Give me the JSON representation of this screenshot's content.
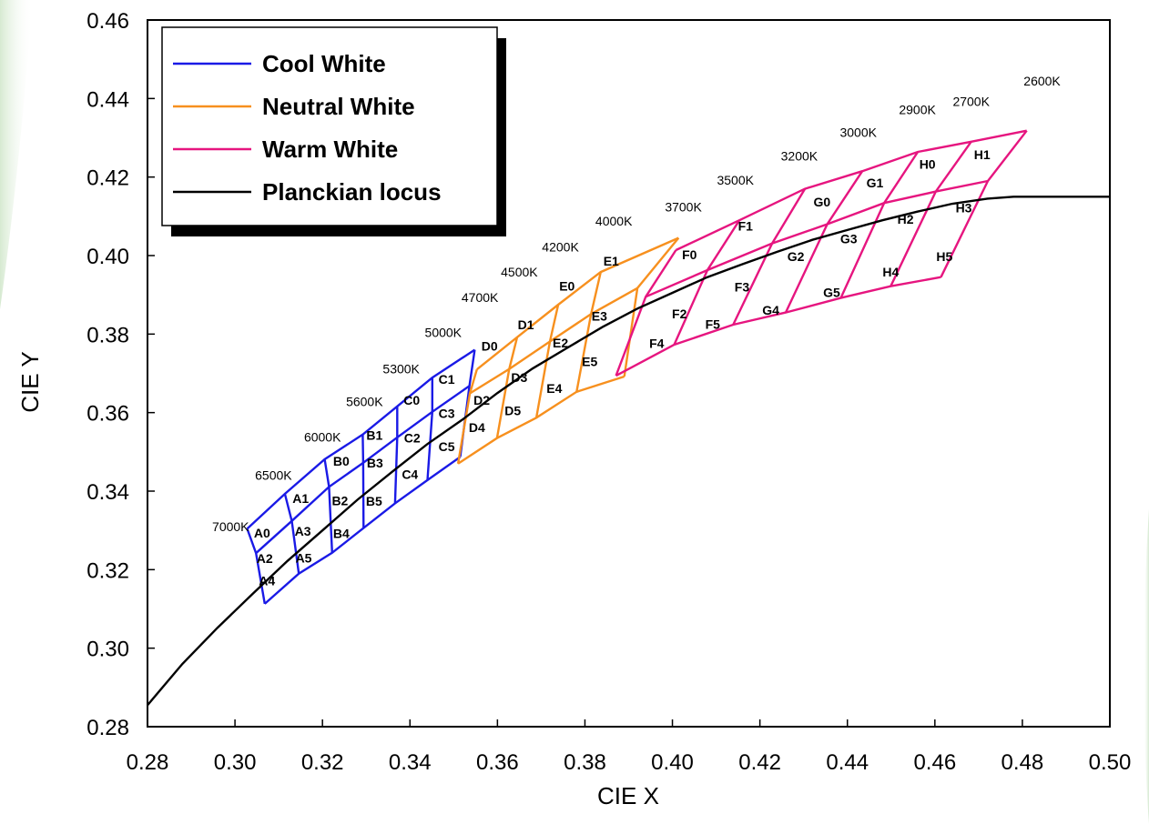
{
  "chart_data": {
    "type": "line",
    "xlabel": "CIE X",
    "ylabel": "CIE Y",
    "xlim": [
      0.28,
      0.5
    ],
    "ylim": [
      0.28,
      0.46
    ],
    "xticks": [
      "0.28",
      "0.30",
      "0.32",
      "0.34",
      "0.36",
      "0.38",
      "0.40",
      "0.42",
      "0.44",
      "0.46",
      "0.48",
      "0.50"
    ],
    "yticks": [
      "0.28",
      "0.30",
      "0.32",
      "0.34",
      "0.36",
      "0.38",
      "0.40",
      "0.42",
      "0.44",
      "0.46"
    ],
    "grid": false,
    "legend_position": "top-left",
    "legend": [
      {
        "name": "Cool White",
        "color": "#1a1ae6"
      },
      {
        "name": "Neutral White",
        "color": "#f7901e"
      },
      {
        "name": "Warm White",
        "color": "#e6157f"
      },
      {
        "name": "Planckian locus",
        "color": "#000000"
      }
    ],
    "planckian_locus": [
      [
        0.28,
        0.2855
      ],
      [
        0.288,
        0.296
      ],
      [
        0.296,
        0.3052
      ],
      [
        0.304,
        0.3138
      ],
      [
        0.312,
        0.3222
      ],
      [
        0.32,
        0.33
      ],
      [
        0.328,
        0.3378
      ],
      [
        0.336,
        0.345
      ],
      [
        0.344,
        0.352
      ],
      [
        0.352,
        0.3582
      ],
      [
        0.36,
        0.365
      ],
      [
        0.368,
        0.3712
      ],
      [
        0.376,
        0.3765
      ],
      [
        0.384,
        0.3818
      ],
      [
        0.392,
        0.3865
      ],
      [
        0.4,
        0.3905
      ],
      [
        0.408,
        0.3945
      ],
      [
        0.416,
        0.3978
      ],
      [
        0.424,
        0.401
      ],
      [
        0.432,
        0.404
      ],
      [
        0.44,
        0.4065
      ],
      [
        0.448,
        0.409
      ],
      [
        0.456,
        0.4112
      ],
      [
        0.464,
        0.4132
      ],
      [
        0.472,
        0.4145
      ],
      [
        0.478,
        0.415
      ],
      [
        0.5,
        0.415
      ]
    ],
    "groups": [
      {
        "name": "Cool White",
        "color": "#1a1ae6",
        "grid_rows": [
          [
            [
              0.3028,
              0.3304
            ],
            [
              0.3114,
              0.3393
            ],
            [
              0.3205,
              0.3481
            ],
            [
              0.3292,
              0.3544
            ],
            [
              0.3371,
              0.3616
            ],
            [
              0.3451,
              0.3689
            ],
            [
              0.3548,
              0.376
            ]
          ],
          [
            [
              0.3048,
              0.3242
            ],
            [
              0.313,
              0.3324
            ],
            [
              0.3215,
              0.3411
            ],
            [
              0.3293,
              0.3472
            ],
            [
              0.3371,
              0.3537
            ],
            [
              0.3451,
              0.3602
            ],
            [
              0.3536,
              0.3668
            ]
          ],
          [
            [
              0.3068,
              0.3113
            ],
            [
              0.3146,
              0.319
            ],
            [
              0.3222,
              0.3243
            ],
            [
              0.3294,
              0.3306
            ],
            [
              0.3366,
              0.3369
            ],
            [
              0.344,
              0.3428
            ],
            [
              0.3515,
              0.3487
            ]
          ]
        ],
        "bins": [
          {
            "label": "A0",
            "x": 0.3062,
            "y": 0.3293
          },
          {
            "label": "A1",
            "x": 0.315,
            "y": 0.3382
          },
          {
            "label": "A2",
            "x": 0.3068,
            "y": 0.3228
          },
          {
            "label": "A3",
            "x": 0.3155,
            "y": 0.3298
          },
          {
            "label": "A4",
            "x": 0.3073,
            "y": 0.3172
          },
          {
            "label": "A5",
            "x": 0.3157,
            "y": 0.323
          },
          {
            "label": "B0",
            "x": 0.3243,
            "y": 0.3476
          },
          {
            "label": "B1",
            "x": 0.3319,
            "y": 0.3542
          },
          {
            "label": "B2",
            "x": 0.324,
            "y": 0.3376
          },
          {
            "label": "B3",
            "x": 0.332,
            "y": 0.3472
          },
          {
            "label": "B4",
            "x": 0.3243,
            "y": 0.3292
          },
          {
            "label": "B5",
            "x": 0.3318,
            "y": 0.3375
          },
          {
            "label": "C0",
            "x": 0.3404,
            "y": 0.3632
          },
          {
            "label": "C1",
            "x": 0.3484,
            "y": 0.3685
          },
          {
            "label": "C2",
            "x": 0.3405,
            "y": 0.3535
          },
          {
            "label": "C3",
            "x": 0.3484,
            "y": 0.3598
          },
          {
            "label": "C4",
            "x": 0.34,
            "y": 0.3443
          },
          {
            "label": "C5",
            "x": 0.3484,
            "y": 0.3513
          }
        ],
        "labels": [
          {
            "text": "7000K",
            "x": 0.299,
            "y": 0.331
          },
          {
            "text": "6500K",
            "x": 0.3088,
            "y": 0.344
          },
          {
            "text": "6000K",
            "x": 0.32,
            "y": 0.3538
          },
          {
            "text": "5600K",
            "x": 0.3296,
            "y": 0.3628
          },
          {
            "text": "5300K",
            "x": 0.338,
            "y": 0.3712
          }
        ]
      },
      {
        "name": "Neutral White",
        "color": "#f7901e",
        "grid_rows": [
          [
            [
              0.3553,
              0.371
            ],
            [
              0.3645,
              0.3792
            ],
            [
              0.3739,
              0.3875
            ],
            [
              0.3836,
              0.3958
            ],
            [
              0.4014,
              0.4045
            ]
          ],
          [
            [
              0.3537,
              0.3649
            ],
            [
              0.3627,
              0.3711
            ],
            [
              0.372,
              0.3781
            ],
            [
              0.3814,
              0.3851
            ],
            [
              0.392,
              0.3917
            ]
          ],
          [
            [
              0.351,
              0.347
            ],
            [
              0.3599,
              0.3535
            ],
            [
              0.3689,
              0.3587
            ],
            [
              0.3781,
              0.3653
            ],
            [
              0.389,
              0.3692
            ]
          ]
        ],
        "bins": [
          {
            "label": "D0",
            "x": 0.3582,
            "y": 0.377
          },
          {
            "label": "D1",
            "x": 0.3665,
            "y": 0.3824
          },
          {
            "label": "D2",
            "x": 0.3564,
            "y": 0.3632
          },
          {
            "label": "D3",
            "x": 0.365,
            "y": 0.3689
          },
          {
            "label": "D4",
            "x": 0.3553,
            "y": 0.3562
          },
          {
            "label": "D5",
            "x": 0.3635,
            "y": 0.3605
          },
          {
            "label": "E0",
            "x": 0.3759,
            "y": 0.3922
          },
          {
            "label": "E1",
            "x": 0.386,
            "y": 0.3986
          },
          {
            "label": "E2",
            "x": 0.3744,
            "y": 0.3778
          },
          {
            "label": "E3",
            "x": 0.3833,
            "y": 0.3846
          },
          {
            "label": "E4",
            "x": 0.373,
            "y": 0.3662
          },
          {
            "label": "E5",
            "x": 0.3811,
            "y": 0.373
          }
        ],
        "labels": [
          {
            "text": "5000K",
            "x": 0.3476,
            "y": 0.3804
          },
          {
            "text": "4700K",
            "x": 0.356,
            "y": 0.3894
          },
          {
            "text": "4500K",
            "x": 0.365,
            "y": 0.3958
          },
          {
            "text": "4200K",
            "x": 0.3744,
            "y": 0.4022
          },
          {
            "text": "4000K",
            "x": 0.3866,
            "y": 0.4088
          }
        ]
      },
      {
        "name": "Warm White",
        "color": "#e6157f",
        "grid_rows": [
          [
            [
              0.4008,
              0.4014
            ],
            [
              0.4153,
              0.409
            ],
            [
              0.4303,
              0.417
            ],
            [
              0.4434,
              0.4215
            ],
            [
              0.4561,
              0.4264
            ],
            [
              0.4683,
              0.429
            ],
            [
              0.481,
              0.4318
            ]
          ],
          [
            [
              0.3939,
              0.3895
            ],
            [
              0.408,
              0.3963
            ],
            [
              0.4228,
              0.4031
            ],
            [
              0.4354,
              0.408
            ],
            [
              0.4484,
              0.4134
            ],
            [
              0.4602,
              0.4163
            ],
            [
              0.4721,
              0.419
            ]
          ],
          [
            [
              0.3871,
              0.3694
            ],
            [
              0.4004,
              0.3773
            ],
            [
              0.4139,
              0.3824
            ],
            [
              0.4259,
              0.3855
            ],
            [
              0.4385,
              0.3892
            ],
            [
              0.4499,
              0.3922
            ],
            [
              0.4614,
              0.3945
            ]
          ]
        ],
        "bins": [
          {
            "label": "F0",
            "x": 0.4039,
            "y": 0.4002
          },
          {
            "label": "F1",
            "x": 0.4167,
            "y": 0.4075
          },
          {
            "label": "F2",
            "x": 0.4016,
            "y": 0.3852
          },
          {
            "label": "F3",
            "x": 0.4159,
            "y": 0.392
          },
          {
            "label": "F4",
            "x": 0.3964,
            "y": 0.3776
          },
          {
            "label": "F5",
            "x": 0.4092,
            "y": 0.3825
          },
          {
            "label": "G0",
            "x": 0.4342,
            "y": 0.4137
          },
          {
            "label": "G1",
            "x": 0.4463,
            "y": 0.4185
          },
          {
            "label": "G2",
            "x": 0.4282,
            "y": 0.3998
          },
          {
            "label": "G3",
            "x": 0.4403,
            "y": 0.4043
          },
          {
            "label": "G4",
            "x": 0.4225,
            "y": 0.3861
          },
          {
            "label": "G5",
            "x": 0.4364,
            "y": 0.3906
          },
          {
            "label": "H0",
            "x": 0.4583,
            "y": 0.4233
          },
          {
            "label": "H1",
            "x": 0.4708,
            "y": 0.4257
          },
          {
            "label": "H2",
            "x": 0.4533,
            "y": 0.4093
          },
          {
            "label": "H3",
            "x": 0.4666,
            "y": 0.4122
          },
          {
            "label": "H4",
            "x": 0.4499,
            "y": 0.3958
          },
          {
            "label": "H5",
            "x": 0.4622,
            "y": 0.3998
          }
        ],
        "labels": [
          {
            "text": "3700K",
            "x": 0.4025,
            "y": 0.4124
          },
          {
            "text": "3500K",
            "x": 0.4144,
            "y": 0.4192
          },
          {
            "text": "3200K",
            "x": 0.429,
            "y": 0.4254
          },
          {
            "text": "3000K",
            "x": 0.4425,
            "y": 0.4314
          },
          {
            "text": "2900K",
            "x": 0.456,
            "y": 0.4372
          },
          {
            "text": "2700K",
            "x": 0.4683,
            "y": 0.4393
          },
          {
            "text": "2600K",
            "x": 0.4845,
            "y": 0.4445
          }
        ]
      }
    ]
  }
}
